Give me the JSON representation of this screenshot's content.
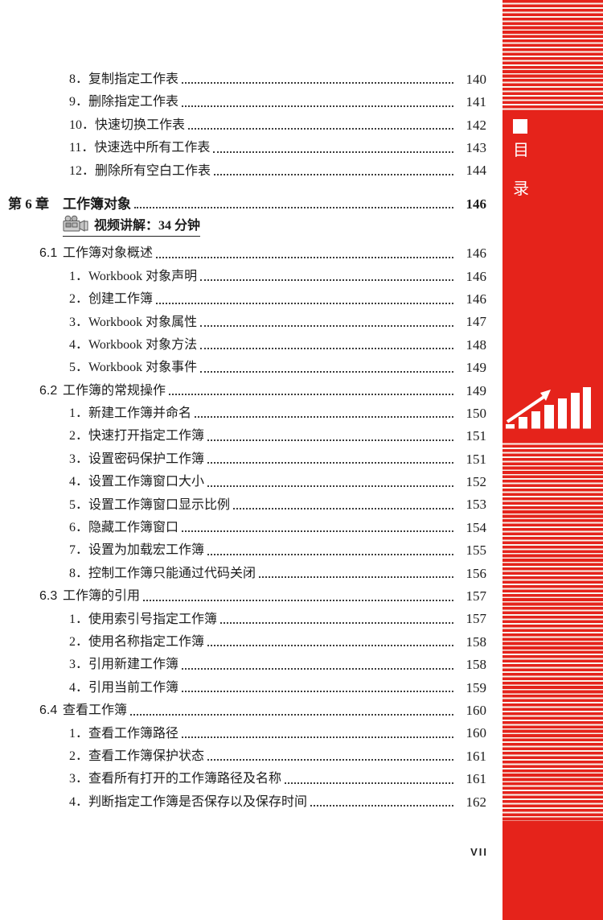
{
  "page": {
    "footer_page_number": "VII",
    "background": "#ffffff",
    "text_color": "#1c1c1c"
  },
  "sidebar": {
    "red": "#E5231B",
    "stripe_line": "#F8F4EC",
    "label_chars": [
      "目",
      "录"
    ],
    "icons": [
      "square-bullet-icon",
      "growth-bar-chart-icon"
    ],
    "growth_chart_bar_heights": [
      5,
      14,
      21,
      29,
      37,
      44,
      51
    ]
  },
  "toc": {
    "video_icon": "video-camera-icon",
    "entries": [
      {
        "type": "item",
        "label": "8．复制指定工作表",
        "page": "140"
      },
      {
        "type": "item",
        "label": "9．删除指定工作表",
        "page": "141"
      },
      {
        "type": "item",
        "label": "10．快速切换工作表",
        "page": "142"
      },
      {
        "type": "item",
        "label": "11．快速选中所有工作表",
        "page": "143"
      },
      {
        "type": "item",
        "label": "12．删除所有空白工作表",
        "page": "144"
      },
      {
        "type": "chapter",
        "num": "第 6 章",
        "label": "工作簿对象",
        "page": "146"
      },
      {
        "type": "video",
        "label": "视频讲解：34 分钟"
      },
      {
        "type": "section",
        "num": "6.1",
        "label": "工作簿对象概述",
        "page": "146"
      },
      {
        "type": "item",
        "label": "1．Workbook 对象声明",
        "page": "146"
      },
      {
        "type": "item",
        "label": "2．创建工作簿",
        "page": "146"
      },
      {
        "type": "item",
        "label": "3．Workbook 对象属性",
        "page": "147"
      },
      {
        "type": "item",
        "label": "4．Workbook 对象方法",
        "page": "148"
      },
      {
        "type": "item",
        "label": "5．Workbook 对象事件",
        "page": "149"
      },
      {
        "type": "section",
        "num": "6.2",
        "label": "工作簿的常规操作",
        "page": "149"
      },
      {
        "type": "item",
        "label": "1．新建工作簿并命名",
        "page": "150"
      },
      {
        "type": "item",
        "label": "2．快速打开指定工作簿",
        "page": "151"
      },
      {
        "type": "item",
        "label": "3．设置密码保护工作簿",
        "page": "151"
      },
      {
        "type": "item",
        "label": "4．设置工作簿窗口大小",
        "page": "152"
      },
      {
        "type": "item",
        "label": "5．设置工作簿窗口显示比例",
        "page": "153"
      },
      {
        "type": "item",
        "label": "6．隐藏工作簿窗口",
        "page": "154"
      },
      {
        "type": "item",
        "label": "7．设置为加载宏工作簿",
        "page": "155"
      },
      {
        "type": "item",
        "label": "8．控制工作簿只能通过代码关闭",
        "page": "156"
      },
      {
        "type": "section",
        "num": "6.3",
        "label": "工作簿的引用",
        "page": "157"
      },
      {
        "type": "item",
        "label": "1．使用索引号指定工作簿",
        "page": "157"
      },
      {
        "type": "item",
        "label": "2．使用名称指定工作簿",
        "page": "158"
      },
      {
        "type": "item",
        "label": "3．引用新建工作簿",
        "page": "158"
      },
      {
        "type": "item",
        "label": "4．引用当前工作簿",
        "page": "159"
      },
      {
        "type": "section",
        "num": "6.4",
        "label": "查看工作簿",
        "page": "160"
      },
      {
        "type": "item",
        "label": "1．查看工作簿路径",
        "page": "160"
      },
      {
        "type": "item",
        "label": "2．查看工作簿保护状态",
        "page": "161"
      },
      {
        "type": "item",
        "label": "3．查看所有打开的工作簿路径及名称",
        "page": "161"
      },
      {
        "type": "item",
        "label": "4．判断指定工作簿是否保存以及保存时间",
        "page": "162"
      }
    ]
  }
}
